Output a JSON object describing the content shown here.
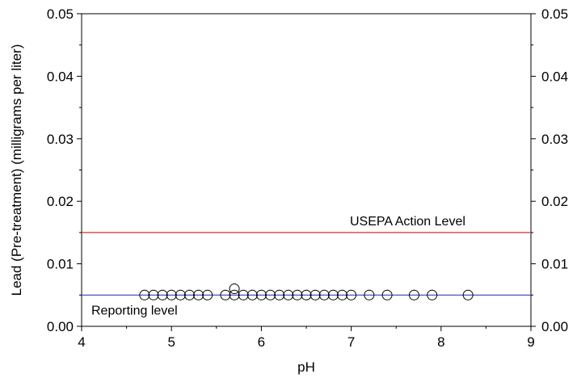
{
  "chart_data": {
    "type": "scatter",
    "xlabel": "pH",
    "ylabel": "Lead (Pre-treatment) (milligrams per liter)",
    "xlim": [
      4,
      9
    ],
    "ylim": [
      0,
      0.05
    ],
    "x_ticks": [
      "4",
      "5",
      "6",
      "7",
      "8",
      "9"
    ],
    "y_ticks": [
      "0.00",
      "0.01",
      "0.02",
      "0.03",
      "0.04",
      "0.05"
    ],
    "grid": false,
    "right_axis_mirrored": true,
    "series": [
      {
        "marker": "open-circle",
        "points": [
          [
            4.7,
            0.005
          ],
          [
            4.8,
            0.005
          ],
          [
            4.9,
            0.005
          ],
          [
            5.0,
            0.005
          ],
          [
            5.1,
            0.005
          ],
          [
            5.2,
            0.005
          ],
          [
            5.3,
            0.005
          ],
          [
            5.4,
            0.005
          ],
          [
            5.6,
            0.005
          ],
          [
            5.7,
            0.005
          ],
          [
            5.7,
            0.006
          ],
          [
            5.8,
            0.005
          ],
          [
            5.9,
            0.005
          ],
          [
            6.0,
            0.005
          ],
          [
            6.1,
            0.005
          ],
          [
            6.2,
            0.005
          ],
          [
            6.3,
            0.005
          ],
          [
            6.4,
            0.005
          ],
          [
            6.5,
            0.005
          ],
          [
            6.6,
            0.005
          ],
          [
            6.7,
            0.005
          ],
          [
            6.8,
            0.005
          ],
          [
            6.9,
            0.005
          ],
          [
            7.0,
            0.005
          ],
          [
            7.2,
            0.005
          ],
          [
            7.4,
            0.005
          ],
          [
            7.7,
            0.005
          ],
          [
            7.9,
            0.005
          ],
          [
            8.3,
            0.005
          ]
        ]
      }
    ],
    "reference_lines": [
      {
        "label": "USEPA Action Level",
        "y": 0.015,
        "color": "#d9302c"
      },
      {
        "label": "Reporting level",
        "y": 0.005,
        "color": "#3b3fb5"
      }
    ]
  }
}
